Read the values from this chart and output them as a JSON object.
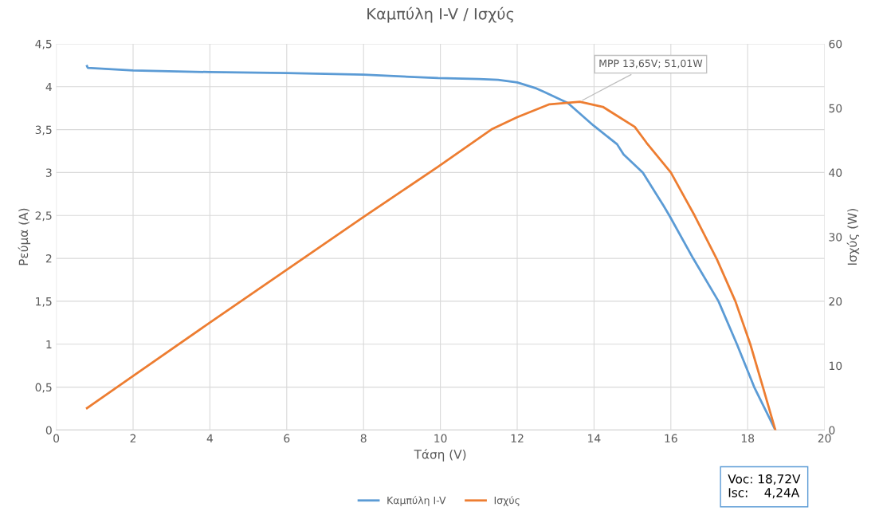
{
  "chart_data": {
    "type": "line",
    "title": "Καμπύλη I-V / Ισχύς",
    "xlabel": "Τάση (V)",
    "ylabel": "Ρεύμα (A)",
    "y2label": "Ισχύς (W)",
    "xlim": [
      0,
      20
    ],
    "xticks": [
      0,
      2,
      4,
      6,
      8,
      10,
      12,
      14,
      16,
      18,
      20
    ],
    "ylim": [
      0,
      4.5
    ],
    "yticks": [
      0,
      {
        "value": 0.5,
        "label": "0,5"
      },
      1,
      {
        "value": 1.5,
        "label": "1,5"
      },
      2,
      {
        "value": 2.5,
        "label": "2,5"
      },
      3,
      {
        "value": 3.5,
        "label": "3,5"
      },
      4,
      {
        "value": 4.5,
        "label": "4,5"
      }
    ],
    "y2lim": [
      0,
      60
    ],
    "y2ticks": [
      0,
      10,
      20,
      30,
      40,
      50,
      60
    ],
    "grid": true,
    "legend": "bottom",
    "line_style": "solid",
    "marker": "none",
    "series": [
      {
        "name": "Καμπύλη I-V",
        "color": "#5b9bd5",
        "x": [
          0.8,
          0.82,
          2,
          4,
          6,
          8,
          9.94,
          11,
          11.5,
          12,
          12.5,
          12.7,
          13.32,
          13.98,
          14.6,
          14.77,
          15.27,
          15.8,
          15.96,
          16.58,
          17.24,
          17.72,
          18.17,
          18.72
        ],
        "values": [
          4.24,
          4.22,
          4.19,
          4.17,
          4.16,
          4.14,
          4.1,
          4.09,
          4.08,
          4.05,
          3.98,
          3.94,
          3.81,
          3.55,
          3.33,
          3.21,
          3.0,
          2.62,
          2.5,
          2.0,
          1.5,
          1.0,
          0.5,
          0
        ]
      },
      {
        "name": "Ισχύς",
        "color": "#ed7d31",
        "axis": "y2",
        "x": [
          0.8,
          2,
          4,
          6,
          8,
          9.94,
          11.33,
          12.0,
          12.84,
          13.63,
          14.23,
          15.06,
          15.37,
          16.0,
          16.62,
          17.2,
          17.68,
          18.07,
          18.4,
          18.72
        ],
        "values": [
          3.4,
          8.4,
          16.7,
          24.9,
          33.1,
          40.9,
          46.7,
          48.6,
          50.6,
          51.0,
          50.2,
          47.1,
          44.6,
          40.0,
          33.3,
          26.5,
          20.0,
          13.3,
          6.6,
          0
        ]
      }
    ],
    "annotations": [
      {
        "text": "MPP 13,65V; 51,01W",
        "x": 13.65,
        "y": 3.83
      },
      "Voc: 18,72V\nIsc:    4,24A"
    ]
  }
}
